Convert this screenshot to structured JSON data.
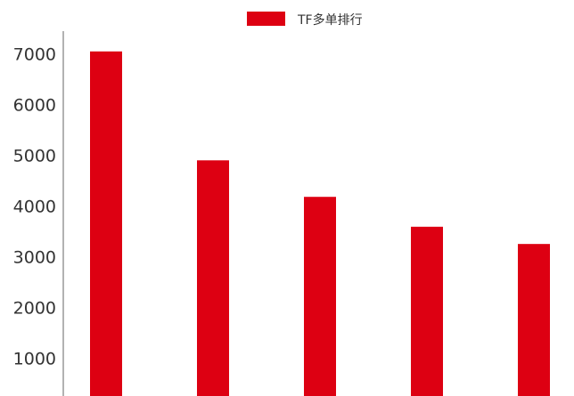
{
  "chart_data": {
    "type": "bar",
    "categories": [
      "",
      "",
      "",
      "",
      ""
    ],
    "series": [
      {
        "name": "TF多单排行",
        "values": [
          7050,
          4900,
          4180,
          3590,
          3250
        ],
        "color": "#dd0012"
      }
    ],
    "yticks": [
      1000,
      2000,
      3000,
      4000,
      5000,
      6000,
      7000
    ],
    "ylim": [
      250,
      7450
    ],
    "grid": false,
    "legend_position": "top-center",
    "axis_color": "#666666",
    "text_color": "#333333"
  }
}
